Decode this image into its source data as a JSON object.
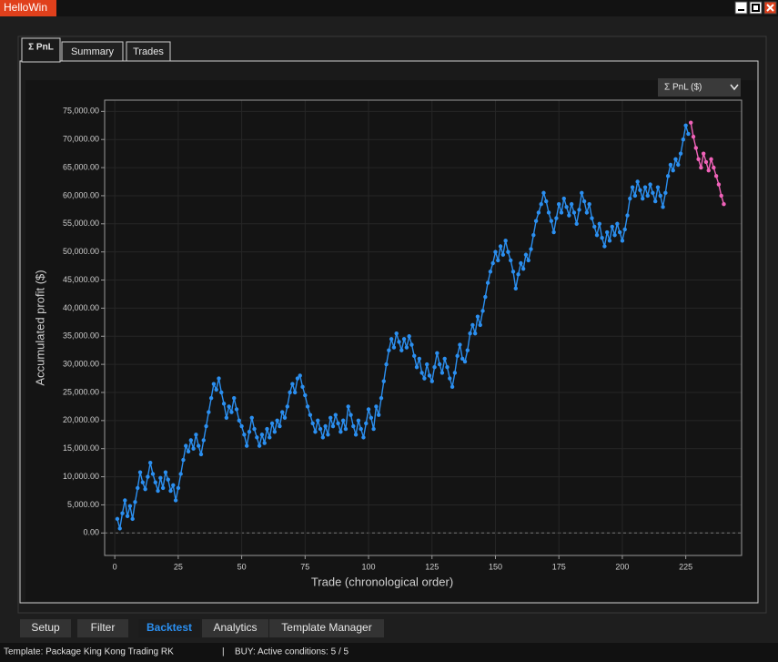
{
  "window": {
    "title": "HelloWin"
  },
  "tabs": [
    "Σ PnL",
    "Summary",
    "Trades"
  ],
  "dropdown": "Σ PnL ($)",
  "chart_data": {
    "type": "line",
    "xlabel": "Trade (chronological order)",
    "ylabel": "Accumulated profit ($)",
    "xlim": [
      -4,
      247
    ],
    "ylim": [
      -4000,
      77000
    ],
    "xticks": [
      0,
      25,
      50,
      75,
      100,
      125,
      150,
      175,
      200,
      225
    ],
    "yticks": [
      {
        "value": 0,
        "label": "0.00"
      },
      {
        "value": 5000,
        "label": "5,000.00"
      },
      {
        "value": 10000,
        "label": "10,000.00"
      },
      {
        "value": 15000,
        "label": "15,000.00"
      },
      {
        "value": 20000,
        "label": "20,000.00"
      },
      {
        "value": 25000,
        "label": "25,000.00"
      },
      {
        "value": 30000,
        "label": "30,000.00"
      },
      {
        "value": 35000,
        "label": "35,000.00"
      },
      {
        "value": 40000,
        "label": "40,000.00"
      },
      {
        "value": 45000,
        "label": "45,000.00"
      },
      {
        "value": 50000,
        "label": "50,000.00"
      },
      {
        "value": 55000,
        "label": "55,000.00"
      },
      {
        "value": 60000,
        "label": "60,000.00"
      },
      {
        "value": 65000,
        "label": "65,000.00"
      },
      {
        "value": 70000,
        "label": "70,000.00"
      },
      {
        "value": 75000,
        "label": "75,000.00"
      }
    ],
    "grid": true,
    "series": [
      {
        "color": "#2b8ff0",
        "x": [
          1,
          2,
          3,
          4,
          5,
          6,
          7,
          8,
          9,
          10,
          11,
          12,
          13,
          14,
          15,
          16,
          17,
          18,
          19,
          20,
          21,
          22,
          23,
          24,
          25,
          26,
          27,
          28,
          29,
          30,
          31,
          32,
          33,
          34,
          35,
          36,
          37,
          38,
          39,
          40,
          41,
          42,
          43,
          44,
          45,
          46,
          47,
          48,
          49,
          50,
          51,
          52,
          53,
          54,
          55,
          56,
          57,
          58,
          59,
          60,
          61,
          62,
          63,
          64,
          65,
          66,
          67,
          68,
          69,
          70,
          71,
          72,
          73,
          74,
          75,
          76,
          77,
          78,
          79,
          80,
          81,
          82,
          83,
          84,
          85,
          86,
          87,
          88,
          89,
          90,
          91,
          92,
          93,
          94,
          95,
          96,
          97,
          98,
          99,
          100,
          101,
          102,
          103,
          104,
          105,
          106,
          107,
          108,
          109,
          110,
          111,
          112,
          113,
          114,
          115,
          116,
          117,
          118,
          119,
          120,
          121,
          122,
          123,
          124,
          125,
          126,
          127,
          128,
          129,
          130,
          131,
          132,
          133,
          134,
          135,
          136,
          137,
          138,
          139,
          140,
          141,
          142,
          143,
          144,
          145,
          146,
          147,
          148,
          149,
          150,
          151,
          152,
          153,
          154,
          155,
          156,
          157,
          158,
          159,
          160,
          161,
          162,
          163,
          164,
          165,
          166,
          167,
          168,
          169,
          170,
          171,
          172,
          173,
          174,
          175,
          176,
          177,
          178,
          179,
          180,
          181,
          182,
          183,
          184,
          185,
          186,
          187,
          188,
          189,
          190,
          191,
          192,
          193,
          194,
          195,
          196,
          197,
          198,
          199,
          200,
          201,
          202,
          203,
          204,
          205,
          206,
          207,
          208,
          209,
          210,
          211,
          212,
          213,
          214,
          215,
          216,
          217,
          218,
          219,
          220,
          221,
          222,
          223,
          224,
          225,
          226
        ],
        "values": [
          2500,
          800,
          3500,
          5800,
          3000,
          4800,
          2500,
          5500,
          8000,
          10800,
          9000,
          7800,
          10000,
          12500,
          10500,
          9000,
          7500,
          9800,
          8000,
          10800,
          9500,
          7500,
          8500,
          5800,
          8000,
          10500,
          13000,
          15500,
          14500,
          16500,
          15000,
          17500,
          15500,
          14000,
          16500,
          19000,
          21500,
          24000,
          26500,
          25500,
          27500,
          25000,
          23000,
          20500,
          22500,
          21500,
          24000,
          22000,
          20000,
          19000,
          17500,
          15500,
          18000,
          20500,
          18500,
          17000,
          15500,
          17500,
          16000,
          18500,
          17000,
          19500,
          18000,
          20000,
          19000,
          21500,
          20500,
          22500,
          25000,
          26500,
          25000,
          27500,
          28000,
          26000,
          24500,
          22500,
          21000,
          19500,
          18000,
          20000,
          18500,
          17000,
          19000,
          17500,
          20500,
          19000,
          21000,
          19500,
          18000,
          20000,
          18500,
          22500,
          21000,
          19000,
          17500,
          20000,
          18500,
          17000,
          19500,
          22000,
          20500,
          18500,
          22500,
          21000,
          24000,
          27000,
          30000,
          32500,
          34500,
          33000,
          35500,
          34000,
          32500,
          34500,
          33000,
          35000,
          33500,
          31500,
          29500,
          31000,
          28500,
          27500,
          30000,
          28000,
          27000,
          29500,
          32000,
          30000,
          28500,
          31000,
          29500,
          27500,
          26000,
          28500,
          31500,
          33500,
          31000,
          30500,
          32500,
          35500,
          37000,
          35500,
          38500,
          37000,
          39500,
          42000,
          44500,
          46500,
          48000,
          50000,
          48500,
          51000,
          49500,
          52000,
          50000,
          48500,
          46500,
          43500,
          46000,
          48000,
          47000,
          49500,
          48500,
          50500,
          53000,
          55500,
          57000,
          58500,
          60500,
          59000,
          57000,
          55500,
          53500,
          56000,
          58500,
          57000,
          59500,
          58000,
          56500,
          58500,
          57000,
          55000,
          57500,
          60500,
          59000,
          57000,
          58500,
          56000,
          54500,
          53000,
          55000,
          52500,
          51000,
          53500,
          52000,
          54500,
          53000,
          55000,
          53500,
          52000,
          54000,
          56500,
          59500,
          61500,
          60000,
          62500,
          61000,
          59500,
          61500,
          60000,
          62000,
          60500,
          59000,
          61500,
          60000,
          58000,
          60500,
          63500,
          65500,
          64500,
          66500,
          65500,
          67500,
          70000,
          72500,
          71000
        ]
      },
      {
        "color": "#f062b9",
        "x": [
          227,
          228,
          229,
          230,
          231,
          232,
          233,
          234,
          235,
          236,
          237,
          238,
          239,
          240
        ],
        "values": [
          73000,
          70500,
          68500,
          66500,
          65000,
          67500,
          66000,
          64500,
          66500,
          65000,
          63500,
          62000,
          60000,
          58500
        ]
      }
    ]
  },
  "bottom_tabs": [
    "Setup",
    "Filter",
    "Backtest",
    "Analytics",
    "Template Manager"
  ],
  "status": {
    "template": "Template: Package King Kong Trading RK",
    "separator": "|",
    "conditions": "BUY:  Active conditions: 5 / 5"
  }
}
